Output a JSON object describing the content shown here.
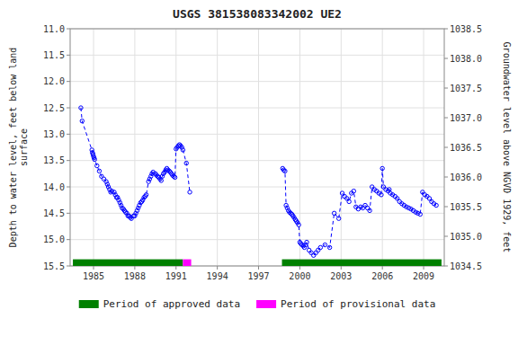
{
  "chart_data": {
    "type": "line",
    "title": "USGS 381538083342002 UE2",
    "ylabel": "Depth to water level, feet below land\nsurface",
    "y2label": "Groundwater level above NGVD 1929, feet",
    "xlim": [
      1983.3,
      2010.5
    ],
    "xticks": [
      1985,
      1988,
      1991,
      1994,
      1997,
      2000,
      2003,
      2006,
      2009
    ],
    "ylim": [
      15.5,
      11.0
    ],
    "yticks": [
      {
        "value": 11.0,
        "label": "11.0"
      },
      11.5,
      {
        "value": 12.0,
        "label": "12.0"
      },
      12.5,
      {
        "value": 13.0,
        "label": "13.0"
      },
      13.5,
      {
        "value": 14.0,
        "label": "14.0"
      },
      14.5,
      {
        "value": 15.0,
        "label": "15.0"
      },
      15.5
    ],
    "y2lim": [
      1034.5,
      1038.5
    ],
    "y2ticks": [
      1034.5,
      {
        "value": 1035.0,
        "label": "1035.0"
      },
      1035.5,
      {
        "value": 1036.0,
        "label": "1036.0"
      },
      1036.5,
      {
        "value": 1037.0,
        "label": "1037.0"
      },
      1037.5,
      {
        "value": 1038.0,
        "label": "1038.0"
      },
      1038.5
    ],
    "grid": true,
    "legend": "bottom",
    "series": [
      {
        "color": "#0000ff",
        "marker": "circle",
        "line_style": "dashed",
        "x": [
          1984.08,
          1984.17,
          1984.88,
          1984.92,
          1984.96,
          1985.0,
          1985.04,
          1985.08,
          1985.25,
          1985.42,
          1985.58,
          1985.75,
          1985.92,
          1986.0,
          1986.08,
          1986.17,
          1986.25,
          1986.33,
          1986.5,
          1986.58,
          1986.67,
          1986.75,
          1986.83,
          1986.92,
          1987.0,
          1987.08,
          1987.17,
          1987.25,
          1987.33,
          1987.42,
          1987.5,
          1987.58,
          1987.67,
          1987.75,
          1987.92,
          1988.0,
          1988.08,
          1988.17,
          1988.25,
          1988.33,
          1988.42,
          1988.5,
          1988.58,
          1988.67,
          1988.75,
          1988.83,
          1989.0,
          1989.08,
          1989.17,
          1989.25,
          1989.33,
          1989.5,
          1989.58,
          1989.67,
          1989.75,
          1989.83,
          1989.92,
          1990.0,
          1990.08,
          1990.17,
          1990.25,
          1990.33,
          1990.42,
          1990.5,
          1990.58,
          1990.67,
          1990.75,
          1990.83,
          1990.92,
          1991.0,
          1991.08,
          1991.17,
          1991.25,
          1991.33,
          1991.42,
          1991.5,
          1991.75,
          1992.0
        ],
        "values": [
          12.5,
          12.75,
          13.3,
          13.35,
          13.38,
          13.42,
          13.45,
          13.48,
          13.6,
          13.7,
          13.8,
          13.85,
          13.9,
          13.95,
          14.0,
          14.05,
          14.1,
          14.08,
          14.1,
          14.15,
          14.2,
          14.2,
          14.25,
          14.3,
          14.35,
          14.4,
          14.42,
          14.45,
          14.48,
          14.5,
          14.55,
          14.55,
          14.58,
          14.6,
          14.55,
          14.55,
          14.5,
          14.45,
          14.4,
          14.35,
          14.3,
          14.28,
          14.25,
          14.2,
          14.18,
          14.15,
          13.9,
          13.85,
          13.8,
          13.75,
          13.72,
          13.75,
          13.78,
          13.8,
          13.82,
          13.85,
          13.88,
          13.8,
          13.75,
          13.72,
          13.68,
          13.65,
          13.68,
          13.7,
          13.72,
          13.75,
          13.78,
          13.8,
          13.82,
          13.28,
          13.25,
          13.22,
          13.2,
          13.22,
          13.25,
          13.3,
          13.55,
          14.1
        ]
      },
      {
        "color": "#0000ff",
        "marker": "circle",
        "line_style": "dashed",
        "x": [
          1998.75,
          1998.83,
          1998.92,
          1999.0,
          1999.08,
          1999.17,
          1999.25,
          1999.33,
          1999.42,
          1999.5,
          1999.58,
          1999.67,
          1999.75,
          1999.83,
          1999.92,
          2000.0,
          2000.08,
          2000.17,
          2000.25,
          2000.33,
          2000.42,
          2000.5,
          2000.67,
          2000.83,
          2001.0,
          2001.17,
          2001.33,
          2001.5,
          2001.83,
          2002.17,
          2002.5,
          2002.83,
          2003.08,
          2003.25,
          2003.42,
          2003.58,
          2003.75,
          2003.92,
          2004.08,
          2004.25,
          2004.42,
          2004.58,
          2004.75,
          2004.92,
          2005.08,
          2005.25,
          2005.42,
          2005.58,
          2005.75,
          2005.92,
          2006.0,
          2006.08,
          2006.25,
          2006.42,
          2006.5,
          2006.58,
          2006.75,
          2006.92,
          2007.08,
          2007.25,
          2007.42,
          2007.58,
          2007.75,
          2007.92,
          2008.08,
          2008.25,
          2008.42,
          2008.58,
          2008.75,
          2008.92,
          2009.08,
          2009.25,
          2009.42,
          2009.58,
          2009.75,
          2009.92
        ],
        "values": [
          13.65,
          13.68,
          13.7,
          14.35,
          14.4,
          14.45,
          14.48,
          14.5,
          14.52,
          14.55,
          14.58,
          14.62,
          14.65,
          14.68,
          14.72,
          15.05,
          15.08,
          15.1,
          15.12,
          15.15,
          15.1,
          15.05,
          15.2,
          15.25,
          15.3,
          15.25,
          15.2,
          15.15,
          15.1,
          15.15,
          14.5,
          14.6,
          14.12,
          14.18,
          14.22,
          14.28,
          14.12,
          14.08,
          14.38,
          14.42,
          14.38,
          14.4,
          14.35,
          14.4,
          14.45,
          14.0,
          14.05,
          14.08,
          14.12,
          14.15,
          13.65,
          14.0,
          14.05,
          14.08,
          14.05,
          14.12,
          14.15,
          14.18,
          14.22,
          14.28,
          14.32,
          14.35,
          14.38,
          14.4,
          14.42,
          14.45,
          14.48,
          14.5,
          14.52,
          14.1,
          14.15,
          14.18,
          14.22,
          14.28,
          14.32,
          14.35
        ]
      }
    ],
    "periods": [
      {
        "name": "Period of approved data",
        "color": "#008000",
        "ranges": [
          [
            1983.5,
            1991.5
          ],
          [
            1998.7,
            2010.3
          ]
        ]
      },
      {
        "name": "Period of provisional data",
        "color": "#ff00ff",
        "ranges": [
          [
            1991.5,
            1992.1
          ]
        ]
      }
    ]
  }
}
